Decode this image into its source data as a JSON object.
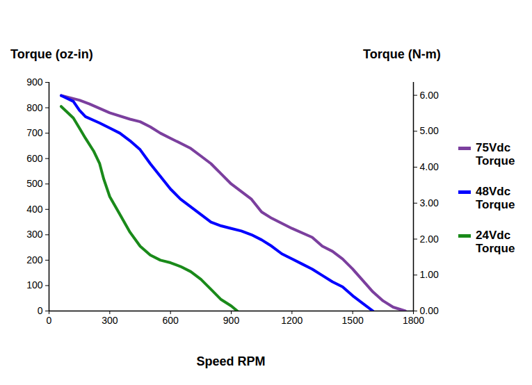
{
  "chart_data": {
    "type": "line",
    "x_label": "Speed RPM",
    "y_label": "Torque (oz-in)",
    "y2_label": "Torque (N-m)",
    "xlim": [
      0,
      1800
    ],
    "xticks": [
      0,
      300,
      600,
      900,
      1200,
      1500,
      1800
    ],
    "ylim": [
      0,
      900
    ],
    "yticks": [
      0,
      100,
      200,
      300,
      400,
      500,
      600,
      700,
      800,
      900
    ],
    "y2lim": [
      0,
      6.36
    ],
    "y2ticks": [
      {
        "value": 0,
        "label": "0.00"
      },
      {
        "value": 1,
        "label": "1.00"
      },
      {
        "value": 2,
        "label": "2.00"
      },
      {
        "value": 3,
        "label": "3.00"
      },
      {
        "value": 4,
        "label": "4.00"
      },
      {
        "value": 5,
        "label": "5.00"
      },
      {
        "value": 6,
        "label": "6.00"
      }
    ],
    "grid": false,
    "legend": "right",
    "series": [
      {
        "name": "75Vdc Torque",
        "color": "#7b3f9e",
        "x": [
          60,
          150,
          200,
          300,
          400,
          450,
          500,
          550,
          600,
          700,
          750,
          800,
          850,
          900,
          1000,
          1050,
          1100,
          1200,
          1300,
          1350,
          1400,
          1450,
          1500,
          1550,
          1600,
          1650,
          1700,
          1760
        ],
        "values": [
          848,
          830,
          815,
          780,
          755,
          745,
          725,
          700,
          680,
          640,
          610,
          580,
          540,
          500,
          440,
          390,
          365,
          325,
          290,
          255,
          235,
          205,
          165,
          120,
          75,
          40,
          15,
          0
        ]
      },
      {
        "name": "48Vdc Torque",
        "color": "#0000ff",
        "x": [
          60,
          120,
          150,
          180,
          250,
          300,
          350,
          400,
          450,
          500,
          550,
          600,
          650,
          700,
          750,
          800,
          850,
          900,
          950,
          1000,
          1050,
          1100,
          1150,
          1200,
          1250,
          1300,
          1350,
          1400,
          1450,
          1500,
          1550,
          1600
        ],
        "values": [
          848,
          825,
          790,
          765,
          740,
          720,
          700,
          670,
          635,
          580,
          530,
          480,
          440,
          410,
          380,
          350,
          335,
          325,
          315,
          300,
          280,
          255,
          225,
          205,
          185,
          165,
          140,
          115,
          95,
          60,
          30,
          0
        ]
      },
      {
        "name": "24Vdc Torque",
        "color": "#1a8a1a",
        "x": [
          60,
          120,
          150,
          180,
          220,
          250,
          270,
          300,
          350,
          400,
          450,
          500,
          550,
          600,
          650,
          700,
          750,
          800,
          850,
          900,
          930
        ],
        "values": [
          805,
          760,
          720,
          680,
          630,
          580,
          520,
          450,
          380,
          310,
          255,
          220,
          200,
          190,
          175,
          155,
          125,
          85,
          45,
          20,
          0
        ]
      }
    ]
  }
}
